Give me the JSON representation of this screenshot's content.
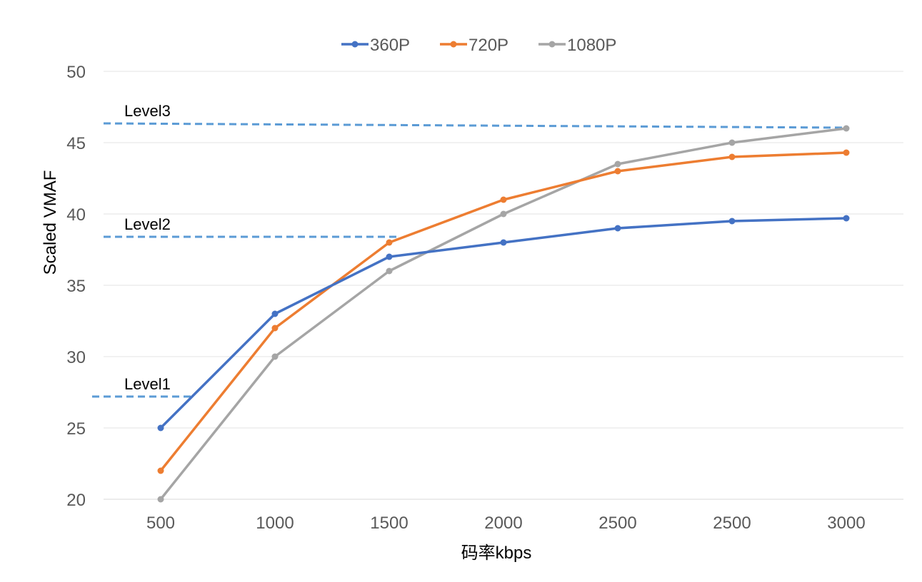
{
  "chart_data": {
    "type": "line",
    "categories": [
      "500",
      "1000",
      "1500",
      "2000",
      "2500",
      "2500",
      "3000"
    ],
    "series": [
      {
        "name": "360P",
        "color": "#4472C4",
        "values": [
          25,
          33,
          37,
          38,
          39,
          39.5,
          39.7
        ]
      },
      {
        "name": "720P",
        "color": "#ED7D31",
        "values": [
          22,
          32,
          38,
          41,
          43,
          44,
          44.3
        ]
      },
      {
        "name": "1080P",
        "color": "#A5A5A5",
        "values": [
          20,
          30,
          36,
          40,
          43.5,
          45,
          46
        ]
      }
    ],
    "xlabel": "码率kbps",
    "ylabel": "Scaled VMAF",
    "ylim": [
      20,
      50
    ],
    "yticks": [
      20,
      25,
      30,
      35,
      40,
      45,
      50
    ],
    "grid": true,
    "legend_position": "top-center",
    "reference_lines": [
      {
        "label": "Level3",
        "y_start": 46.35,
        "y_end": 46.05,
        "x_start_cat": -0.5,
        "x_end_cat": 6.0,
        "color": "#5B9BD5"
      },
      {
        "label": "Level2",
        "y_start": 38.4,
        "y_end": 38.4,
        "x_start_cat": -0.5,
        "x_end_cat": 2.1,
        "color": "#5B9BD5"
      },
      {
        "label": "Level1",
        "y_start": 27.2,
        "y_end": 27.2,
        "x_start_cat": -0.6,
        "x_end_cat": 0.3,
        "color": "#5B9BD5"
      }
    ]
  }
}
